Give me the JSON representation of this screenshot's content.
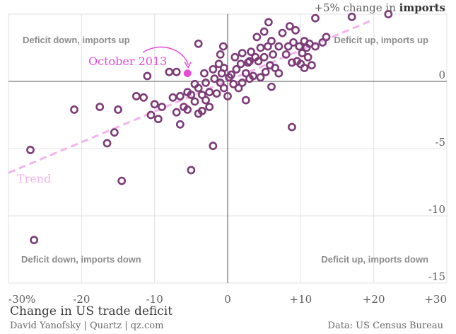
{
  "chart_data": {
    "type": "scatter",
    "xlim": [
      -30,
      30
    ],
    "ylim": [
      -15,
      5
    ],
    "x_ticks": [
      {
        "value": -30,
        "label": "-30%"
      },
      {
        "value": -20,
        "label": "-20"
      },
      {
        "value": -10,
        "label": "-10"
      },
      {
        "value": 0,
        "label": "0"
      },
      {
        "value": 10,
        "label": "+10"
      },
      {
        "value": 20,
        "label": "+20"
      },
      {
        "value": 30,
        "label": "+30"
      }
    ],
    "y_ticks": [
      {
        "value": 5,
        "label": "+5% change in ",
        "label_bold": "imports"
      },
      {
        "value": 0,
        "label": "0"
      },
      {
        "value": -5,
        "label": "-5"
      },
      {
        "value": -10,
        "label": "-10"
      },
      {
        "value": -15,
        "label": "-15"
      }
    ],
    "xlabel": "Change in US trade deficit",
    "quadrant_labels": {
      "top_left": "Deficit down, imports up",
      "top_right": "Deficit up, imports up",
      "bottom_left": "Deficit down, imports down",
      "bottom_right": "Deficit up, imports down"
    },
    "grid": true,
    "trend": {
      "label": "Trend",
      "color": "#f4b3ee",
      "points": [
        [
          -30,
          -6.8
        ],
        [
          20,
          4.6
        ]
      ]
    },
    "highlight": {
      "label": "October 2013",
      "x": -5.5,
      "y": 0.6,
      "color": "#e74ad9"
    },
    "marker_color": "#7d3c78",
    "points": [
      [
        -27,
        -5.1
      ],
      [
        -26.5,
        -11.8
      ],
      [
        -21,
        -2.1
      ],
      [
        -17.5,
        -1.9
      ],
      [
        -16.5,
        -4.6
      ],
      [
        -15.5,
        -3.8
      ],
      [
        -15,
        -2.1
      ],
      [
        -14.5,
        -7.4
      ],
      [
        -12.5,
        -1.1
      ],
      [
        -11.5,
        -1.2
      ],
      [
        -11,
        0.4
      ],
      [
        -10.5,
        -2.5
      ],
      [
        -10,
        -1.7
      ],
      [
        -9.5,
        -2.8
      ],
      [
        -9,
        -1.9
      ],
      [
        -8,
        0.7
      ],
      [
        -7.5,
        -1.2
      ],
      [
        -7,
        -2.3
      ],
      [
        -7,
        0.7
      ],
      [
        -6.5,
        -3.2
      ],
      [
        -6.5,
        -1.1
      ],
      [
        -6,
        -1.9
      ],
      [
        -5.5,
        -0.8
      ],
      [
        -5.5,
        -2.1
      ],
      [
        -5,
        -1.0
      ],
      [
        -5,
        -6.6
      ],
      [
        -4.5,
        -0.2
      ],
      [
        -4.5,
        -1.5
      ],
      [
        -4,
        2.8
      ],
      [
        -4,
        -0.5
      ],
      [
        -4,
        -2.4
      ],
      [
        -3.5,
        -1.0
      ],
      [
        -3.5,
        -2.2
      ],
      [
        -3.2,
        0.6
      ],
      [
        -3,
        -0.1
      ],
      [
        -3,
        -1.4
      ],
      [
        -2.5,
        -0.8
      ],
      [
        -2.5,
        -1.9
      ],
      [
        -2,
        -4.8
      ],
      [
        -2,
        0.9
      ],
      [
        -1.8,
        0.2
      ],
      [
        -1.5,
        -0.9
      ],
      [
        -1.2,
        1.3
      ],
      [
        -1,
        2.0
      ],
      [
        -1,
        -0.1
      ],
      [
        -0.8,
        0.6
      ],
      [
        -0.6,
        2.6
      ],
      [
        -0.5,
        -0.5
      ],
      [
        -0.5,
        1.0
      ],
      [
        0,
        -1.1
      ],
      [
        0.2,
        0.3
      ],
      [
        0.5,
        0.5
      ],
      [
        0.8,
        -0.2
      ],
      [
        1,
        1.8
      ],
      [
        1.2,
        0.9
      ],
      [
        1.5,
        -0.5
      ],
      [
        1.8,
        1.3
      ],
      [
        2,
        -0.1
      ],
      [
        2,
        2.1
      ],
      [
        2.5,
        -1.4
      ],
      [
        2.5,
        0.6
      ],
      [
        2.8,
        1.4
      ],
      [
        3,
        0.2
      ],
      [
        3,
        1.5
      ],
      [
        3.2,
        2.2
      ],
      [
        3.5,
        0.4
      ],
      [
        3.8,
        1.8
      ],
      [
        4,
        3.3
      ],
      [
        4.2,
        1.5
      ],
      [
        4.5,
        0.3
      ],
      [
        4.5,
        2.5
      ],
      [
        5,
        3.7
      ],
      [
        5,
        1.8
      ],
      [
        5.2,
        0.7
      ],
      [
        5.5,
        2.6
      ],
      [
        5.6,
        4.4
      ],
      [
        5.8,
        1.2
      ],
      [
        6,
        -0.4
      ],
      [
        6,
        3.0
      ],
      [
        6.2,
        2.0
      ],
      [
        6.5,
        1.0
      ],
      [
        7,
        0.6
      ],
      [
        7,
        2.6
      ],
      [
        7.5,
        3.6
      ],
      [
        8,
        2.0
      ],
      [
        8.3,
        2.6
      ],
      [
        8.5,
        4.1
      ],
      [
        8.8,
        1.4
      ],
      [
        8.8,
        -3.4
      ],
      [
        9,
        2.9
      ],
      [
        9.3,
        3.8
      ],
      [
        9.5,
        1.5
      ],
      [
        9.8,
        2.6
      ],
      [
        10,
        1.3
      ],
      [
        10.2,
        2.1
      ],
      [
        10.5,
        1.0
      ],
      [
        10.5,
        3.0
      ],
      [
        10.8,
        2.5
      ],
      [
        11,
        1.8
      ],
      [
        11.2,
        2.8
      ],
      [
        11.5,
        1.2
      ],
      [
        12,
        2.6
      ],
      [
        12,
        4.7
      ],
      [
        13,
        2.9
      ],
      [
        13.5,
        3.3
      ],
      [
        17,
        4.8
      ],
      [
        22,
        5.0
      ]
    ]
  },
  "footer": {
    "credit": "David Yanofsky | Quartz | qz.com",
    "source": "Data: US Census Bureau"
  }
}
